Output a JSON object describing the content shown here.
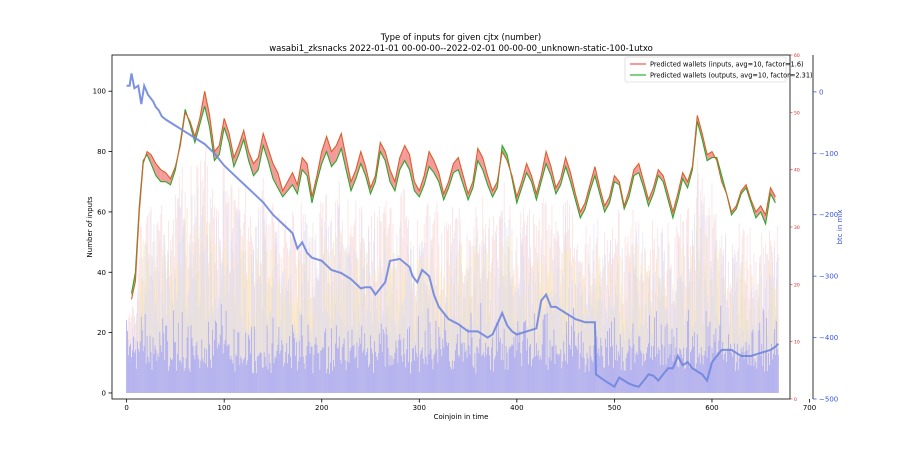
{
  "chart_data": {
    "type": "line",
    "title": "Type of inputs for given cjtx (number)",
    "subtitle": "wasabi1_zksnacks 2022-01-01 00-00-00--2022-02-01 00-00-00_unknown-static-100-1utxo",
    "xlabel": "Coinjoin in time",
    "ylabel": "Number of inputs",
    "y2label": "btc in mix",
    "xlim": [
      -15,
      680
    ],
    "ylim": [
      -2,
      112
    ],
    "y2lim": [
      -500,
      60
    ],
    "y3lim": [
      0,
      60
    ],
    "xticks": [
      0,
      100,
      200,
      300,
      400,
      500,
      600,
      700
    ],
    "yticks": [
      0,
      20,
      40,
      60,
      80,
      100
    ],
    "y2ticks": [
      0,
      -100,
      -200,
      -300,
      -400,
      -500
    ],
    "y3ticks": [
      0,
      10,
      20,
      30,
      40,
      50,
      60
    ],
    "x_tick_labels": [
      "0",
      "100",
      "200",
      "300",
      "400",
      "500",
      "600",
      "700"
    ],
    "y_tick_labels": [
      "0",
      "20",
      "40",
      "60",
      "80",
      "100"
    ],
    "y2_tick_labels": [
      "0",
      "−100",
      "−200",
      "−300",
      "−400",
      "−500"
    ],
    "y3_tick_labels": [
      "0",
      "10",
      "20",
      "30",
      "40",
      "50",
      "60"
    ],
    "legend_position": "top-right",
    "grid": false,
    "colors": {
      "inputs_line": "#d9602c",
      "outputs_line": "#2fa52f",
      "fill_red": "#ef6f6f",
      "fill_green": "#4fb84f",
      "btc_line": "#6f86de",
      "blue_bars": "#a6a6f5",
      "pale_blue_bars": "#d6d9f6",
      "yellow_bars": "#fbe9a6",
      "pink_bars": "#f7c9c9",
      "y2_axis": "#3a56d8",
      "y3_axis": "#d62728"
    },
    "series": [
      {
        "name": "Predicted wallets (inputs, avg=10, factor=1.6)",
        "axis": "left",
        "x": [
          5,
          9,
          13,
          17,
          21,
          25,
          30,
          35,
          40,
          45,
          50,
          55,
          60,
          65,
          70,
          75,
          80,
          85,
          90,
          95,
          100,
          105,
          110,
          115,
          120,
          125,
          130,
          135,
          140,
          145,
          150,
          155,
          160,
          165,
          170,
          175,
          180,
          185,
          190,
          195,
          200,
          205,
          210,
          215,
          220,
          225,
          230,
          235,
          240,
          245,
          250,
          255,
          260,
          265,
          270,
          275,
          280,
          285,
          290,
          295,
          300,
          305,
          310,
          315,
          320,
          325,
          330,
          335,
          340,
          345,
          350,
          355,
          360,
          365,
          370,
          375,
          380,
          385,
          390,
          395,
          400,
          405,
          410,
          415,
          420,
          425,
          430,
          435,
          440,
          445,
          450,
          455,
          460,
          465,
          470,
          475,
          480,
          485,
          490,
          495,
          500,
          505,
          510,
          515,
          520,
          525,
          530,
          535,
          540,
          545,
          550,
          555,
          560,
          565,
          570,
          575,
          580,
          585,
          590,
          595,
          600,
          605,
          610,
          615,
          620,
          625,
          630,
          635,
          640,
          645,
          650,
          655,
          660,
          665
        ],
        "values": [
          31,
          37,
          60,
          76,
          80,
          79,
          76,
          74,
          73,
          71,
          75,
          82,
          93,
          90,
          85,
          91,
          100,
          92,
          80,
          82,
          91,
          86,
          78,
          82,
          87,
          80,
          76,
          78,
          86,
          81,
          76,
          73,
          67,
          70,
          73,
          69,
          78,
          76,
          65,
          72,
          80,
          85,
          80,
          82,
          86,
          78,
          70,
          74,
          80,
          75,
          68,
          72,
          83,
          80,
          74,
          70,
          78,
          82,
          79,
          70,
          67,
          72,
          80,
          77,
          73,
          66,
          70,
          76,
          78,
          72,
          66,
          70,
          81,
          78,
          72,
          67,
          70,
          80,
          77,
          72,
          65,
          70,
          76,
          72,
          66,
          72,
          80,
          75,
          68,
          71,
          78,
          73,
          66,
          60,
          63,
          69,
          75,
          68,
          62,
          65,
          72,
          70,
          62,
          67,
          74,
          76,
          70,
          64,
          68,
          74,
          72,
          66,
          60,
          66,
          73,
          70,
          75,
          92,
          86,
          79,
          80,
          77,
          70,
          66,
          60,
          62,
          67,
          69,
          64,
          60,
          62,
          59,
          68,
          65
        ]
      },
      {
        "name": "Predicted wallets (outputs, avg=10, factor=2.31)",
        "axis": "left",
        "x": [
          5,
          9,
          13,
          17,
          21,
          25,
          30,
          35,
          40,
          45,
          50,
          55,
          60,
          65,
          70,
          75,
          80,
          85,
          90,
          95,
          100,
          105,
          110,
          115,
          120,
          125,
          130,
          135,
          140,
          145,
          150,
          155,
          160,
          165,
          170,
          175,
          180,
          185,
          190,
          195,
          200,
          205,
          210,
          215,
          220,
          225,
          230,
          235,
          240,
          245,
          250,
          255,
          260,
          265,
          270,
          275,
          280,
          285,
          290,
          295,
          300,
          305,
          310,
          315,
          320,
          325,
          330,
          335,
          340,
          345,
          350,
          355,
          360,
          365,
          370,
          375,
          380,
          385,
          390,
          395,
          400,
          405,
          410,
          415,
          420,
          425,
          430,
          435,
          440,
          445,
          450,
          455,
          460,
          465,
          470,
          475,
          480,
          485,
          490,
          495,
          500,
          505,
          510,
          515,
          520,
          525,
          530,
          535,
          540,
          545,
          550,
          555,
          560,
          565,
          570,
          575,
          580,
          585,
          590,
          595,
          600,
          605,
          610,
          615,
          620,
          625,
          630,
          635,
          640,
          645,
          650,
          655,
          660,
          665
        ],
        "values": [
          33,
          40,
          62,
          77,
          79,
          76,
          72,
          70,
          70,
          69,
          74,
          83,
          94,
          89,
          83,
          89,
          95,
          88,
          77,
          79,
          88,
          83,
          75,
          79,
          84,
          77,
          72,
          74,
          82,
          77,
          71,
          68,
          65,
          67,
          69,
          66,
          74,
          72,
          63,
          70,
          76,
          80,
          75,
          77,
          81,
          74,
          67,
          71,
          76,
          72,
          66,
          70,
          80,
          77,
          70,
          67,
          74,
          77,
          74,
          67,
          65,
          69,
          75,
          73,
          70,
          64,
          68,
          73,
          74,
          69,
          64,
          68,
          77,
          74,
          69,
          65,
          68,
          82,
          79,
          71,
          63,
          68,
          73,
          70,
          64,
          70,
          76,
          72,
          66,
          69,
          75,
          70,
          64,
          58,
          61,
          67,
          72,
          66,
          60,
          63,
          70,
          69,
          61,
          65,
          72,
          73,
          68,
          62,
          66,
          72,
          70,
          64,
          58,
          64,
          71,
          68,
          74,
          90,
          84,
          77,
          78,
          78,
          72,
          66,
          59,
          61,
          66,
          68,
          63,
          58,
          60,
          56,
          66,
          63
        ]
      },
      {
        "name": "btc in mix",
        "axis": "right",
        "x": [
          0,
          3,
          5,
          8,
          12,
          15,
          18,
          22,
          27,
          30,
          33,
          36,
          40,
          50,
          60,
          70,
          80,
          90,
          100,
          110,
          120,
          130,
          140,
          150,
          160,
          170,
          175,
          180,
          185,
          190,
          200,
          210,
          220,
          230,
          240,
          245,
          250,
          255,
          260,
          265,
          270,
          280,
          290,
          293,
          298,
          303,
          310,
          315,
          320,
          325,
          330,
          340,
          350,
          360,
          370,
          375,
          380,
          385,
          390,
          395,
          400,
          410,
          420,
          425,
          430,
          435,
          440,
          450,
          460,
          470,
          480,
          481,
          490,
          500,
          505,
          510,
          515,
          520,
          525,
          530,
          535,
          540,
          545,
          550,
          555,
          560,
          565,
          570,
          575,
          580,
          585,
          590,
          595,
          600,
          610,
          620,
          630,
          640,
          650,
          660,
          665,
          668
        ],
        "values": [
          10,
          10,
          30,
          6,
          10,
          -20,
          10,
          -5,
          -15,
          -25,
          -30,
          -40,
          -45,
          -55,
          -65,
          -75,
          -85,
          -100,
          -120,
          -135,
          -150,
          -165,
          -180,
          -200,
          -215,
          -230,
          -255,
          -245,
          -262,
          -270,
          -275,
          -290,
          -295,
          -305,
          -320,
          -318,
          -318,
          -330,
          -320,
          -310,
          -275,
          -272,
          -285,
          -300,
          -310,
          -290,
          -300,
          -330,
          -350,
          -360,
          -370,
          -378,
          -390,
          -390,
          -400,
          -395,
          -378,
          -360,
          -380,
          -390,
          -395,
          -390,
          -385,
          -340,
          -330,
          -350,
          -350,
          -360,
          -370,
          -375,
          -375,
          -460,
          -470,
          -480,
          -465,
          -470,
          -475,
          -478,
          -480,
          -470,
          -460,
          -462,
          -470,
          -460,
          -450,
          -450,
          -430,
          -445,
          -440,
          -450,
          -455,
          -460,
          -470,
          -440,
          -420,
          -420,
          -430,
          -430,
          -425,
          -420,
          -415,
          -410
        ]
      }
    ]
  }
}
